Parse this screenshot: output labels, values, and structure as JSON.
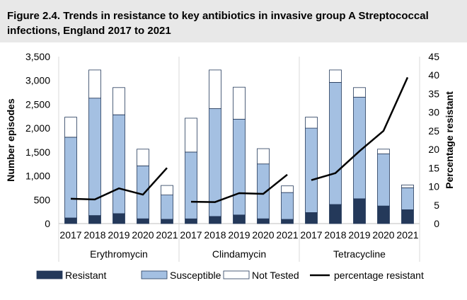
{
  "title": "Figure 2.4. Trends in resistance to key antibiotics in invasive group A Streptococcal infections, England 2017 to 2021",
  "chart_data": {
    "type": "bar",
    "stacked": true,
    "years": [
      "2017",
      "2018",
      "2019",
      "2020",
      "2021"
    ],
    "groups": [
      "Erythromycin",
      "Clindamycin",
      "Tetracycline"
    ],
    "ylabel": "Number episodes",
    "y2label": "Percentage resistant",
    "ylim": [
      0,
      3500
    ],
    "y2lim": [
      0,
      45
    ],
    "yticks": [
      "0",
      "500",
      "1,000",
      "1,500",
      "2,000",
      "2,500",
      "3,000",
      "3,500"
    ],
    "y2ticks": [
      "0",
      "5",
      "10",
      "15",
      "20",
      "25",
      "30",
      "35",
      "40",
      "45"
    ],
    "series": [
      {
        "name": "Resistant",
        "color": "#24395a",
        "values": [
          [
            120,
            170,
            210,
            100,
            90
          ],
          [
            100,
            150,
            180,
            100,
            90
          ],
          [
            230,
            400,
            520,
            370,
            290
          ]
        ]
      },
      {
        "name": "Susceptible",
        "color": "#a4c0e2",
        "values": [
          [
            1690,
            2460,
            2070,
            1110,
            510
          ],
          [
            1400,
            2260,
            2010,
            1150,
            560
          ],
          [
            1770,
            2560,
            2130,
            1090,
            460
          ]
        ]
      },
      {
        "name": "Not Tested",
        "color": "#ffffff",
        "values": [
          [
            420,
            590,
            570,
            350,
            200
          ],
          [
            710,
            810,
            670,
            320,
            140
          ],
          [
            230,
            260,
            200,
            100,
            60
          ]
        ]
      }
    ],
    "line_series": {
      "name": "percentage resistant",
      "color": "#000000",
      "axis": "y2",
      "values": [
        [
          6.7,
          6.5,
          9.5,
          7.8,
          15
        ],
        [
          5.9,
          5.8,
          8.2,
          8.0,
          13.2
        ],
        [
          11.7,
          13.6,
          19.5,
          25,
          39.4
        ]
      ]
    },
    "legend": [
      "Resistant",
      "Susceptible",
      "Not Tested",
      "percentage resistant"
    ]
  }
}
